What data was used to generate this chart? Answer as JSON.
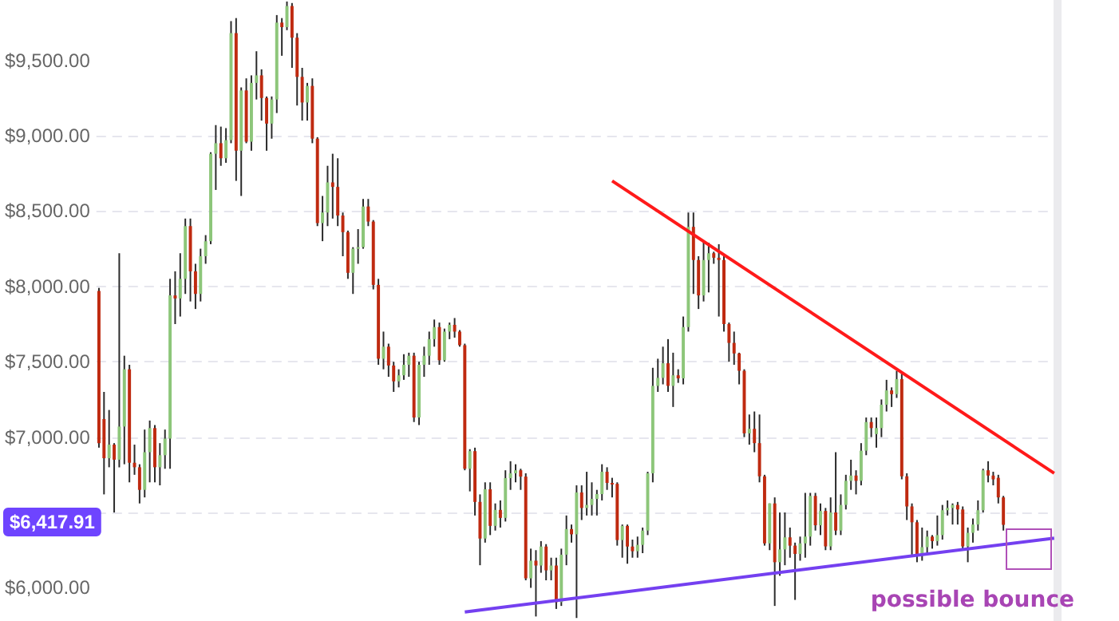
{
  "chart_data": {
    "type": "candlestick",
    "categories": [
      null,
      null,
      null,
      null,
      null,
      null,
      null,
      null,
      null,
      null,
      null,
      null,
      null,
      null,
      null,
      null,
      null,
      null,
      null,
      null,
      null,
      null,
      null,
      null,
      null,
      null,
      null,
      null,
      null,
      null,
      null,
      null,
      null,
      null,
      null,
      null,
      null,
      null,
      null,
      null,
      null,
      null,
      null,
      null,
      null,
      null,
      null,
      null,
      null,
      null,
      null,
      null,
      null,
      null,
      null,
      null,
      null,
      null,
      null,
      null,
      null,
      null,
      null,
      null,
      null,
      null,
      null,
      null,
      null,
      null,
      null,
      null,
      null,
      null,
      null,
      null,
      null,
      null,
      null,
      null,
      null,
      null,
      null,
      null,
      null,
      null,
      null,
      null,
      null,
      null,
      null,
      null,
      null,
      null,
      null,
      null,
      null,
      null,
      null,
      null,
      null,
      null,
      null,
      null,
      null,
      null,
      null,
      null,
      null,
      null,
      null,
      null,
      null,
      null,
      null,
      null,
      null,
      null,
      null,
      null,
      null,
      null,
      null,
      null,
      null,
      null,
      null,
      null,
      null,
      null,
      null,
      null,
      null,
      null,
      null,
      null,
      null,
      null,
      null,
      null,
      null,
      null,
      null,
      null,
      null,
      null,
      null,
      null,
      null,
      null,
      null,
      null,
      null,
      null,
      null,
      null,
      null,
      null,
      null,
      null,
      null,
      null,
      null,
      null,
      null,
      null,
      null,
      null,
      null,
      null,
      null,
      null,
      null,
      null,
      null,
      null,
      null,
      null,
      null,
      null,
      null,
      null,
      null,
      null,
      null,
      null,
      null,
      null,
      null
    ],
    "ohlc": [
      [
        7970,
        7990,
        6930,
        6960
      ],
      [
        7120,
        7300,
        6620,
        6860
      ],
      [
        6860,
        7180,
        6800,
        6950
      ],
      [
        6950,
        6960,
        6500,
        6850
      ],
      [
        6850,
        8220,
        6800,
        7070
      ],
      [
        7070,
        7540,
        6820,
        7450
      ],
      [
        7450,
        7480,
        6700,
        6830
      ],
      [
        6830,
        6950,
        6750,
        6800
      ],
      [
        6800,
        6820,
        6560,
        6650
      ],
      [
        6650,
        7050,
        6600,
        6900
      ],
      [
        6900,
        7110,
        6700,
        7060
      ],
      [
        7060,
        7080,
        6700,
        6800
      ],
      [
        6800,
        6960,
        6680,
        6880
      ],
      [
        6880,
        7050,
        6790,
        6990
      ],
      [
        6990,
        8050,
        6790,
        7940
      ],
      [
        7940,
        8100,
        7750,
        7920
      ],
      [
        7920,
        8220,
        7800,
        8050
      ],
      [
        8050,
        8450,
        7950,
        8400
      ],
      [
        8400,
        8450,
        7900,
        8100
      ],
      [
        8100,
        8150,
        7850,
        7950
      ],
      [
        7950,
        8250,
        7900,
        8200
      ],
      [
        8200,
        8340,
        8150,
        8300
      ],
      [
        8300,
        8890,
        8280,
        8880
      ],
      [
        8880,
        9070,
        8640,
        8950
      ],
      [
        8950,
        9060,
        8800,
        8850
      ],
      [
        8850,
        9050,
        8820,
        8970
      ],
      [
        8970,
        9760,
        8950,
        9680
      ],
      [
        9680,
        9780,
        8700,
        8900
      ],
      [
        8900,
        9320,
        8600,
        9300
      ],
      [
        9300,
        9380,
        8950,
        8960
      ],
      [
        8960,
        9400,
        8900,
        9350
      ],
      [
        9350,
        9560,
        9240,
        9400
      ],
      [
        9400,
        9440,
        9100,
        9250
      ],
      [
        9250,
        9260,
        8900,
        9080
      ],
      [
        9080,
        9260,
        8980,
        9240
      ],
      [
        9240,
        9800,
        9150,
        9750
      ],
      [
        9750,
        9780,
        9530,
        9720
      ],
      [
        9720,
        9890,
        9700,
        9860
      ],
      [
        9860,
        9880,
        9450,
        9650
      ],
      [
        9650,
        9680,
        9200,
        9390
      ],
      [
        9390,
        9450,
        9100,
        9220
      ],
      [
        9220,
        9350,
        9100,
        9330
      ],
      [
        9330,
        9380,
        8950,
        8980
      ],
      [
        8980,
        8990,
        8400,
        8420
      ],
      [
        8420,
        8600,
        8300,
        8490
      ],
      [
        8490,
        8800,
        8400,
        8690
      ],
      [
        8690,
        8880,
        8450,
        8660
      ],
      [
        8660,
        8850,
        8400,
        8470
      ],
      [
        8470,
        8490,
        8200,
        8360
      ],
      [
        8360,
        8370,
        8050,
        8090
      ],
      [
        8090,
        8260,
        7950,
        8250
      ],
      [
        8250,
        8380,
        8150,
        8260
      ],
      [
        8260,
        8580,
        8250,
        8530
      ],
      [
        8530,
        8580,
        8400,
        8430
      ],
      [
        8430,
        8440,
        7980,
        8010
      ],
      [
        8010,
        8050,
        7480,
        7520
      ],
      [
        7520,
        7700,
        7450,
        7600
      ],
      [
        7600,
        7620,
        7400,
        7475
      ],
      [
        7475,
        7500,
        7300,
        7370
      ],
      [
        7370,
        7450,
        7330,
        7410
      ],
      [
        7410,
        7550,
        7380,
        7480
      ],
      [
        7480,
        7560,
        7400,
        7540
      ],
      [
        7540,
        7560,
        7100,
        7130
      ],
      [
        7130,
        7500,
        7080,
        7480
      ],
      [
        7480,
        7600,
        7400,
        7540
      ],
      [
        7540,
        7700,
        7480,
        7650
      ],
      [
        7650,
        7780,
        7600,
        7730
      ],
      [
        7730,
        7760,
        7480,
        7510
      ],
      [
        7510,
        7720,
        7500,
        7700
      ],
      [
        7700,
        7760,
        7650,
        7745
      ],
      [
        7745,
        7790,
        7660,
        7700
      ],
      [
        7700,
        7710,
        7600,
        7610
      ],
      [
        7610,
        7620,
        6780,
        6790
      ],
      [
        6790,
        6920,
        6640,
        6907
      ],
      [
        6907,
        6930,
        6480,
        6570
      ],
      [
        6570,
        6620,
        6150,
        6327
      ],
      [
        6327,
        6700,
        6300,
        6654
      ],
      [
        6654,
        6700,
        6350,
        6411
      ],
      [
        6411,
        6560,
        6380,
        6517
      ],
      [
        6517,
        6580,
        6400,
        6464
      ],
      [
        6464,
        6780,
        6440,
        6728
      ],
      [
        6728,
        6840,
        6650,
        6760
      ],
      [
        6760,
        6820,
        6700,
        6780
      ],
      [
        6780,
        6790,
        6650,
        6738
      ],
      [
        6738,
        6760,
        6050,
        6063
      ],
      [
        6063,
        6260,
        6000,
        6180
      ],
      [
        6180,
        6250,
        5810,
        6148
      ],
      [
        6148,
        6310,
        6100,
        6274
      ],
      [
        6274,
        6290,
        6050,
        6116
      ],
      [
        6116,
        6200,
        6050,
        6148
      ],
      [
        6148,
        6200,
        5860,
        5905
      ],
      [
        5905,
        6260,
        5880,
        6220
      ],
      [
        6220,
        6480,
        6150,
        6390
      ],
      [
        6390,
        6420,
        6300,
        6355
      ],
      [
        6355,
        6680,
        5800,
        6633
      ],
      [
        6633,
        6680,
        6450,
        6530
      ],
      [
        6530,
        6770,
        6480,
        6550
      ],
      [
        6550,
        6700,
        6480,
        6590
      ],
      [
        6590,
        6650,
        6480,
        6622
      ],
      [
        6622,
        6820,
        6580,
        6770
      ],
      [
        6770,
        6800,
        6650,
        6696
      ],
      [
        6696,
        6730,
        6600,
        6690
      ],
      [
        6690,
        6700,
        6280,
        6317
      ],
      [
        6317,
        6420,
        6200,
        6411
      ],
      [
        6411,
        6420,
        6160,
        6274
      ],
      [
        6274,
        6320,
        6200,
        6243
      ],
      [
        6243,
        6340,
        6200,
        6285
      ],
      [
        6285,
        6400,
        6230,
        6380
      ],
      [
        6380,
        6770,
        6350,
        6760
      ],
      [
        6760,
        7460,
        6700,
        7340
      ],
      [
        7340,
        7520,
        7300,
        7393
      ],
      [
        7393,
        7600,
        7350,
        7490
      ],
      [
        7490,
        7650,
        7300,
        7340
      ],
      [
        7340,
        7560,
        7200,
        7410
      ],
      [
        7410,
        7450,
        7360,
        7390
      ],
      [
        7390,
        7800,
        7350,
        7730
      ],
      [
        7730,
        8490,
        7700,
        8395
      ],
      [
        8395,
        8490,
        7950,
        8175
      ],
      [
        8175,
        8200,
        7850,
        7940
      ],
      [
        7940,
        8300,
        7900,
        8175
      ],
      [
        8175,
        8290,
        7960,
        8220
      ],
      [
        8220,
        8230,
        8150,
        8190
      ],
      [
        8190,
        8280,
        7800,
        8175
      ],
      [
        8175,
        8200,
        7700,
        7750
      ],
      [
        7750,
        7760,
        7500,
        7625
      ],
      [
        7625,
        7700,
        7480,
        7555
      ],
      [
        7555,
        7560,
        7350,
        7440
      ],
      [
        7440,
        7450,
        7000,
        7025
      ],
      [
        7025,
        7150,
        6950,
        7055
      ],
      [
        7055,
        7170,
        6900,
        6960
      ],
      [
        6960,
        7150,
        6700,
        6740
      ],
      [
        6740,
        6750,
        6280,
        6295
      ],
      [
        6295,
        6560,
        6250,
        6560
      ],
      [
        6560,
        6600,
        5880,
        6170
      ],
      [
        6170,
        6500,
        6080,
        6255
      ],
      [
        6255,
        6500,
        6150,
        6335
      ],
      [
        6335,
        6400,
        6200,
        6280
      ],
      [
        6280,
        6300,
        5920,
        6225
      ],
      [
        6225,
        6340,
        6180,
        6295
      ],
      [
        6295,
        6630,
        6200,
        6340
      ],
      [
        6340,
        6630,
        6280,
        6610
      ],
      [
        6610,
        6630,
        6380,
        6415
      ],
      [
        6415,
        6560,
        6350,
        6510
      ],
      [
        6510,
        6530,
        6250,
        6275
      ],
      [
        6275,
        6600,
        6250,
        6500
      ],
      [
        6500,
        6900,
        6350,
        6380
      ],
      [
        6380,
        6620,
        6350,
        6550
      ],
      [
        6550,
        6750,
        6520,
        6710
      ],
      [
        6710,
        6850,
        6650,
        6745
      ],
      [
        6745,
        6780,
        6620,
        6710
      ],
      [
        6710,
        6960,
        6680,
        6910
      ],
      [
        6910,
        7130,
        6880,
        7100
      ],
      [
        7100,
        7130,
        7000,
        7060
      ],
      [
        7020,
        7130,
        6930,
        7060
      ],
      [
        7060,
        7250,
        7000,
        7215
      ],
      [
        7215,
        7380,
        7170,
        7310
      ],
      [
        7310,
        7330,
        7200,
        7285
      ],
      [
        7285,
        7440,
        7260,
        7385
      ],
      [
        7385,
        7420,
        6720,
        6740
      ],
      [
        6740,
        6760,
        6450,
        6540
      ],
      [
        6540,
        6560,
        6220,
        6435
      ],
      [
        6435,
        6450,
        6170,
        6220
      ],
      [
        6220,
        6400,
        6180,
        6270
      ],
      [
        6270,
        6380,
        6230,
        6340
      ],
      [
        6340,
        6350,
        6260,
        6310
      ],
      [
        6310,
        6480,
        6280,
        6350
      ],
      [
        6350,
        6550,
        6320,
        6515
      ],
      [
        6515,
        6580,
        6480,
        6530
      ],
      [
        6530,
        6560,
        6420,
        6550
      ],
      [
        6550,
        6570,
        6420,
        6520
      ],
      [
        6520,
        6540,
        6250,
        6275
      ],
      [
        6275,
        6400,
        6170,
        6365
      ],
      [
        6365,
        6460,
        6300,
        6420
      ],
      [
        6420,
        6580,
        6380,
        6515
      ],
      [
        6515,
        6790,
        6500,
        6780
      ],
      [
        6780,
        6840,
        6700,
        6745
      ],
      [
        6745,
        6770,
        6680,
        6720
      ],
      [
        6730,
        6750,
        6560,
        6600
      ],
      [
        6600,
        6610,
        6380,
        6418
      ],
      null,
      null,
      null,
      null,
      null,
      null,
      null,
      null,
      null,
      null
    ],
    "colors": [
      "#bf2a10",
      "#bf2a10",
      "#8dc67a",
      "#bf2a10",
      "#8dc67a",
      "#8dc67a",
      "#bf2a10",
      "#bf2a10",
      "#bf2a10",
      "#8dc67a",
      "#8dc67a",
      "#bf2a10",
      "#8dc67a",
      "#8dc67a",
      "#8dc67a",
      "#bf2a10",
      "#8dc67a",
      "#8dc67a",
      "#bf2a10",
      "#bf2a10",
      "#8dc67a",
      "#8dc67a",
      "#8dc67a",
      "#8dc67a",
      "#bf2a10",
      "#8dc67a",
      "#8dc67a",
      "#bf2a10",
      "#8dc67a",
      "#bf2a10",
      "#8dc67a",
      "#8dc67a",
      "#bf2a10",
      "#bf2a10",
      "#8dc67a",
      "#8dc67a",
      "#bf2a10",
      "#8dc67a",
      "#bf2a10",
      "#bf2a10",
      "#bf2a10",
      "#8dc67a",
      "#bf2a10",
      "#bf2a10",
      "#8dc67a",
      "#8dc67a",
      "#bf2a10",
      "#bf2a10",
      "#bf2a10",
      "#bf2a10",
      "#8dc67a",
      "#8dc67a",
      "#8dc67a",
      "#bf2a10",
      "#bf2a10",
      "#bf2a10",
      "#8dc67a",
      "#bf2a10",
      "#bf2a10",
      "#8dc67a",
      "#8dc67a",
      "#8dc67a",
      "#bf2a10",
      "#8dc67a",
      "#8dc67a",
      "#8dc67a",
      "#8dc67a",
      "#bf2a10",
      "#8dc67a",
      "#8dc67a",
      "#bf2a10",
      "#bf2a10",
      "#bf2a10",
      "#8dc67a",
      "#bf2a10",
      "#bf2a10",
      "#8dc67a",
      "#bf2a10",
      "#8dc67a",
      "#bf2a10",
      "#8dc67a",
      "#8dc67a",
      "#8dc67a",
      "#bf2a10",
      "#bf2a10",
      "#8dc67a",
      "#bf2a10",
      "#8dc67a",
      "#bf2a10",
      "#8dc67a",
      "#bf2a10",
      "#8dc67a",
      "#8dc67a",
      "#bf2a10",
      "#8dc67a",
      "#bf2a10",
      "#8dc67a",
      "#8dc67a",
      "#8dc67a",
      "#8dc67a",
      "#bf2a10",
      "#bf2a10",
      "#bf2a10",
      "#8dc67a",
      "#bf2a10",
      "#bf2a10",
      "#8dc67a",
      "#8dc67a",
      "#8dc67a",
      "#8dc67a",
      "#8dc67a",
      "#8dc67a",
      "#bf2a10",
      "#8dc67a",
      "#bf2a10",
      "#8dc67a",
      "#8dc67a",
      "#bf2a10",
      "#bf2a10",
      "#8dc67a",
      "#8dc67a",
      "#bf2a10",
      "#bf2a10",
      "#bf2a10",
      "#bf2a10",
      "#bf2a10",
      "#bf2a10",
      "#bf2a10",
      "#8dc67a",
      "#bf2a10",
      "#bf2a10",
      "#bf2a10",
      "#8dc67a",
      "#bf2a10",
      "#8dc67a",
      "#8dc67a",
      "#bf2a10",
      "#bf2a10",
      "#8dc67a",
      "#8dc67a",
      "#8dc67a",
      "#bf2a10",
      "#8dc67a",
      "#bf2a10",
      "#8dc67a",
      "#bf2a10",
      "#8dc67a",
      "#8dc67a",
      "#8dc67a",
      "#bf2a10",
      "#8dc67a",
      "#8dc67a",
      "#bf2a10",
      "#8dc67a",
      "#8dc67a",
      "#8dc67a",
      "#bf2a10",
      "#8dc67a",
      "#bf2a10",
      "#bf2a10",
      "#bf2a10",
      "#bf2a10",
      "#8dc67a",
      "#8dc67a",
      "#bf2a10",
      "#8dc67a",
      "#8dc67a",
      "#8dc67a",
      "#8dc67a",
      "#bf2a10",
      "#bf2a10",
      "#8dc67a",
      "#8dc67a",
      "#8dc67a",
      "#8dc67a",
      "#bf2a10",
      "#bf2a10",
      "#bf2a10",
      "#bf2a10",
      null,
      null,
      null,
      null,
      null,
      null,
      null,
      null,
      null,
      null
    ],
    "series": [
      {
        "type": "line",
        "color": "#ff1a1a",
        "values": [
          null,
          null,
          null,
          null,
          null,
          null,
          null,
          null,
          null,
          null,
          null,
          null,
          null,
          null,
          null,
          null,
          null,
          null,
          null,
          null,
          null,
          null,
          null,
          null,
          null,
          null,
          null,
          null,
          null,
          null,
          null,
          null,
          null,
          null,
          null,
          null,
          null,
          null,
          null,
          null,
          null,
          null,
          null,
          null,
          null,
          null,
          null,
          null,
          null,
          null,
          null,
          null,
          null,
          null,
          null,
          null,
          null,
          null,
          null,
          null,
          null,
          null,
          null,
          null,
          null,
          null,
          null,
          null,
          null,
          null,
          null,
          null,
          null,
          null,
          null,
          null,
          null,
          null,
          null,
          null,
          null,
          null,
          null,
          null,
          null,
          null,
          null,
          null,
          null,
          null,
          null,
          null,
          null,
          null,
          null,
          null,
          null,
          null,
          null,
          null,
          null,
          8700,
          null,
          null,
          null,
          null,
          null,
          null,
          null,
          null,
          null,
          null,
          null,
          null,
          null,
          null,
          null,
          null,
          null,
          null,
          null,
          null,
          null,
          null,
          null,
          null,
          null,
          null,
          null,
          null,
          null,
          null,
          null,
          null,
          null,
          null,
          null,
          null,
          null,
          null,
          null,
          null,
          null,
          null,
          null,
          null,
          null,
          null,
          null,
          null,
          null,
          null,
          null,
          null,
          null,
          null,
          null,
          null,
          null,
          null,
          null,
          null,
          null,
          null,
          null,
          null,
          null,
          null,
          null,
          null,
          null,
          null,
          null,
          null,
          null,
          null,
          null,
          null,
          null,
          null,
          null,
          null,
          null,
          null,
          null,
          null,
          null,
          null,
          6760
        ]
      },
      {
        "type": "line",
        "color": "#7440f0",
        "values": [
          null,
          null,
          null,
          null,
          null,
          null,
          null,
          null,
          null,
          null,
          null,
          null,
          null,
          null,
          null,
          null,
          null,
          null,
          null,
          null,
          null,
          null,
          null,
          null,
          null,
          null,
          null,
          null,
          null,
          null,
          null,
          null,
          null,
          null,
          null,
          null,
          null,
          null,
          null,
          null,
          null,
          null,
          null,
          null,
          null,
          null,
          null,
          null,
          null,
          null,
          null,
          null,
          null,
          null,
          null,
          null,
          null,
          null,
          null,
          null,
          null,
          null,
          null,
          null,
          null,
          null,
          null,
          null,
          null,
          null,
          null,
          null,
          5840,
          null,
          null,
          null,
          null,
          null,
          null,
          null,
          null,
          null,
          null,
          null,
          null,
          null,
          null,
          null,
          null,
          null,
          null,
          null,
          null,
          null,
          null,
          null,
          null,
          null,
          null,
          null,
          null,
          null,
          null,
          null,
          null,
          null,
          null,
          null,
          null,
          null,
          null,
          null,
          null,
          null,
          null,
          null,
          null,
          null,
          null,
          null,
          null,
          null,
          null,
          null,
          null,
          null,
          null,
          null,
          null,
          null,
          null,
          null,
          null,
          null,
          null,
          null,
          null,
          null,
          null,
          null,
          null,
          null,
          null,
          null,
          null,
          null,
          null,
          null,
          null,
          null,
          null,
          null,
          null,
          null,
          null,
          null,
          null,
          null,
          null,
          null,
          null,
          null,
          null,
          null,
          null,
          null,
          null,
          null,
          null,
          null,
          null,
          null,
          null,
          null,
          null,
          null,
          null,
          null,
          null,
          null,
          null,
          null,
          null,
          null,
          null,
          null,
          null,
          null,
          6330
        ]
      }
    ],
    "ylim": [
      5780,
      9900
    ],
    "yticks": [
      {
        "value": 6000,
        "label": "$6,000.00"
      },
      {
        "value": 6500,
        "label": null
      },
      {
        "value": 7000,
        "label": "$7,000.00"
      },
      {
        "value": 7500,
        "label": "$7,500.00"
      },
      {
        "value": 8000,
        "label": "$8,000.00"
      },
      {
        "value": 8500,
        "label": "$8,500.00"
      },
      {
        "value": 9000,
        "label": "$9,000.00"
      },
      {
        "value": 9500,
        "label": "$9,500.00"
      }
    ],
    "grid": "y",
    "tick_labels": "y",
    "annotations": [
      "$6,417.91",
      "possible bounce"
    ]
  }
}
